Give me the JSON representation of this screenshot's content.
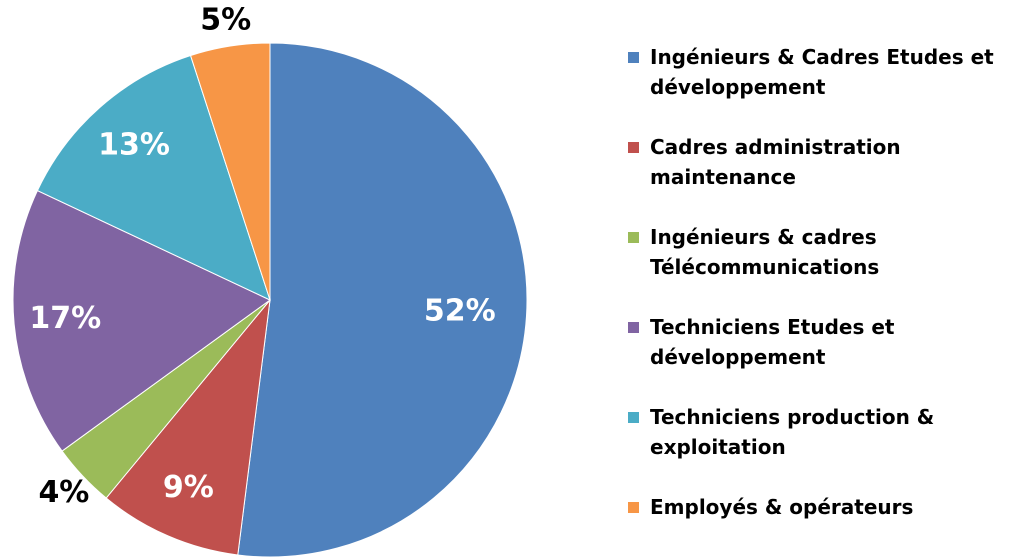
{
  "chart_data": {
    "type": "pie",
    "categories": [
      "Ingénieurs & Cadres Etudes et développement",
      "Cadres administration maintenance",
      "Ingénieurs & cadres Télécommunications",
      "Techniciens Etudes et développement",
      "Techniciens production & exploitation",
      "Employés & opérateurs"
    ],
    "values": [
      52,
      9,
      4,
      17,
      13,
      5
    ],
    "value_labels": [
      "52%",
      "9%",
      "4%",
      "17%",
      "13%",
      "5%"
    ],
    "colors": [
      "#4f81bd",
      "#c0504d",
      "#9bbb59",
      "#8064a2",
      "#4bacc6",
      "#f79646"
    ],
    "legend": "right"
  }
}
